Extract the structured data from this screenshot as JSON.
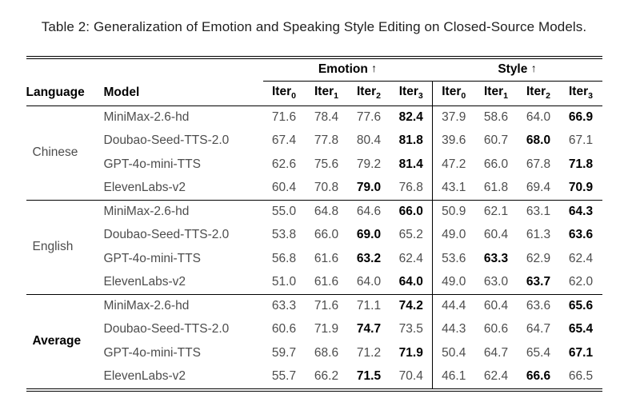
{
  "title": "Table 2: Generalization of Emotion and Speaking Style Editing on Closed-Source Models.",
  "header": {
    "language": "Language",
    "model": "Model",
    "groups": [
      {
        "label": "Emotion",
        "arrow": "↑"
      },
      {
        "label": "Style",
        "arrow": "↑"
      }
    ],
    "iters": [
      {
        "base": "Iter",
        "sub": "0"
      },
      {
        "base": "Iter",
        "sub": "1"
      },
      {
        "base": "Iter",
        "sub": "2"
      },
      {
        "base": "Iter",
        "sub": "3"
      }
    ]
  },
  "body": {
    "blocks": [
      {
        "language": "Chinese",
        "language_bold": false,
        "rows": [
          {
            "model": "MiniMax-2.6-hd",
            "cells": [
              {
                "v": "71.6"
              },
              {
                "v": "78.4"
              },
              {
                "v": "77.6"
              },
              {
                "v": "82.4",
                "b": true
              },
              {
                "v": "37.9"
              },
              {
                "v": "58.6"
              },
              {
                "v": "64.0"
              },
              {
                "v": "66.9",
                "b": true
              }
            ]
          },
          {
            "model": "Doubao-Seed-TTS-2.0",
            "cells": [
              {
                "v": "67.4"
              },
              {
                "v": "77.8"
              },
              {
                "v": "80.4"
              },
              {
                "v": "81.8",
                "b": true
              },
              {
                "v": "39.6"
              },
              {
                "v": "60.7"
              },
              {
                "v": "68.0",
                "b": true
              },
              {
                "v": "67.1"
              }
            ]
          },
          {
            "model": "GPT-4o-mini-TTS",
            "cells": [
              {
                "v": "62.6"
              },
              {
                "v": "75.6"
              },
              {
                "v": "79.2"
              },
              {
                "v": "81.4",
                "b": true
              },
              {
                "v": "47.2"
              },
              {
                "v": "66.0"
              },
              {
                "v": "67.8"
              },
              {
                "v": "71.8",
                "b": true
              }
            ]
          },
          {
            "model": "ElevenLabs-v2",
            "cells": [
              {
                "v": "60.4"
              },
              {
                "v": "70.8"
              },
              {
                "v": "79.0",
                "b": true
              },
              {
                "v": "76.8"
              },
              {
                "v": "43.1"
              },
              {
                "v": "61.8"
              },
              {
                "v": "69.4"
              },
              {
                "v": "70.9",
                "b": true
              }
            ]
          }
        ]
      },
      {
        "language": "English",
        "language_bold": false,
        "rows": [
          {
            "model": "MiniMax-2.6-hd",
            "cells": [
              {
                "v": "55.0"
              },
              {
                "v": "64.8"
              },
              {
                "v": "64.6"
              },
              {
                "v": "66.0",
                "b": true
              },
              {
                "v": "50.9"
              },
              {
                "v": "62.1"
              },
              {
                "v": "63.1"
              },
              {
                "v": "64.3",
                "b": true
              }
            ]
          },
          {
            "model": "Doubao-Seed-TTS-2.0",
            "cells": [
              {
                "v": "53.8"
              },
              {
                "v": "66.0"
              },
              {
                "v": "69.0",
                "b": true
              },
              {
                "v": "65.2"
              },
              {
                "v": "49.0"
              },
              {
                "v": "60.4"
              },
              {
                "v": "61.3"
              },
              {
                "v": "63.6",
                "b": true
              }
            ]
          },
          {
            "model": "GPT-4o-mini-TTS",
            "cells": [
              {
                "v": "56.8"
              },
              {
                "v": "61.6"
              },
              {
                "v": "63.2",
                "b": true
              },
              {
                "v": "62.4"
              },
              {
                "v": "53.6"
              },
              {
                "v": "63.3",
                "b": true
              },
              {
                "v": "62.9"
              },
              {
                "v": "62.4"
              }
            ]
          },
          {
            "model": "ElevenLabs-v2",
            "cells": [
              {
                "v": "51.0"
              },
              {
                "v": "61.6"
              },
              {
                "v": "64.0"
              },
              {
                "v": "64.0",
                "b": true
              },
              {
                "v": "49.0"
              },
              {
                "v": "63.0"
              },
              {
                "v": "63.7",
                "b": true
              },
              {
                "v": "62.0"
              }
            ]
          }
        ]
      },
      {
        "language": "Average",
        "language_bold": true,
        "rows": [
          {
            "model": "MiniMax-2.6-hd",
            "cells": [
              {
                "v": "63.3"
              },
              {
                "v": "71.6"
              },
              {
                "v": "71.1"
              },
              {
                "v": "74.2",
                "b": true
              },
              {
                "v": "44.4"
              },
              {
                "v": "60.4"
              },
              {
                "v": "63.6"
              },
              {
                "v": "65.6",
                "b": true
              }
            ]
          },
          {
            "model": "Doubao-Seed-TTS-2.0",
            "cells": [
              {
                "v": "60.6"
              },
              {
                "v": "71.9"
              },
              {
                "v": "74.7",
                "b": true
              },
              {
                "v": "73.5"
              },
              {
                "v": "44.3"
              },
              {
                "v": "60.6"
              },
              {
                "v": "64.7"
              },
              {
                "v": "65.4",
                "b": true
              }
            ]
          },
          {
            "model": "GPT-4o-mini-TTS",
            "cells": [
              {
                "v": "59.7"
              },
              {
                "v": "68.6"
              },
              {
                "v": "71.2"
              },
              {
                "v": "71.9",
                "b": true
              },
              {
                "v": "50.4"
              },
              {
                "v": "64.7"
              },
              {
                "v": "65.4"
              },
              {
                "v": "67.1",
                "b": true
              }
            ]
          },
          {
            "model": "ElevenLabs-v2",
            "cells": [
              {
                "v": "55.7"
              },
              {
                "v": "66.2"
              },
              {
                "v": "71.5",
                "b": true
              },
              {
                "v": "70.4"
              },
              {
                "v": "46.1"
              },
              {
                "v": "62.4"
              },
              {
                "v": "66.6",
                "b": true
              },
              {
                "v": "66.5"
              }
            ]
          }
        ]
      }
    ]
  }
}
